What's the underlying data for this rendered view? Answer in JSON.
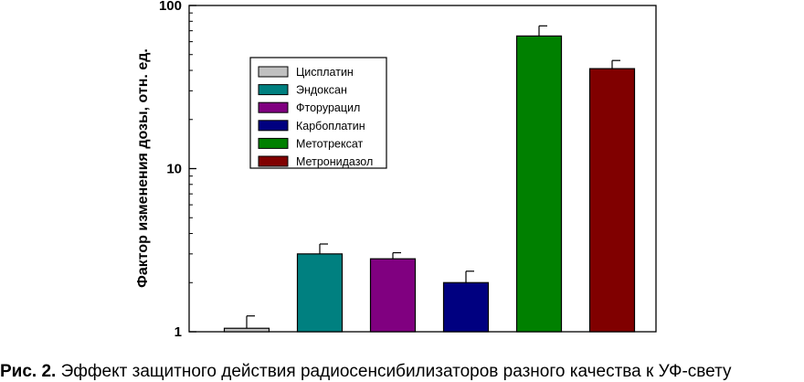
{
  "chart_data": {
    "type": "bar",
    "ylabel": "Фактор изменения дозы, отн. ед.",
    "xlabel": "",
    "yscale": "log",
    "ylim": [
      1,
      100
    ],
    "yticks": [
      "1",
      "10",
      "100"
    ],
    "legend_position": "top-left",
    "categories": [
      "Цисплатин",
      "Эндоксан",
      "Фторурацил",
      "Карбоплатин",
      "Метотрексат",
      "Метронидазол"
    ],
    "values": [
      1.05,
      3.0,
      2.8,
      2.0,
      65,
      41
    ],
    "errors": [
      0.2,
      0.45,
      0.25,
      0.35,
      10,
      5
    ],
    "colors": [
      "#c0c0c0",
      "#008080",
      "#800080",
      "#000080",
      "#008000",
      "#800000"
    ]
  },
  "caption": {
    "label": "Рис. 2.",
    "text": " Эффект защитного действия радиосенсибилизаторов разного качества к УФ-свету"
  }
}
